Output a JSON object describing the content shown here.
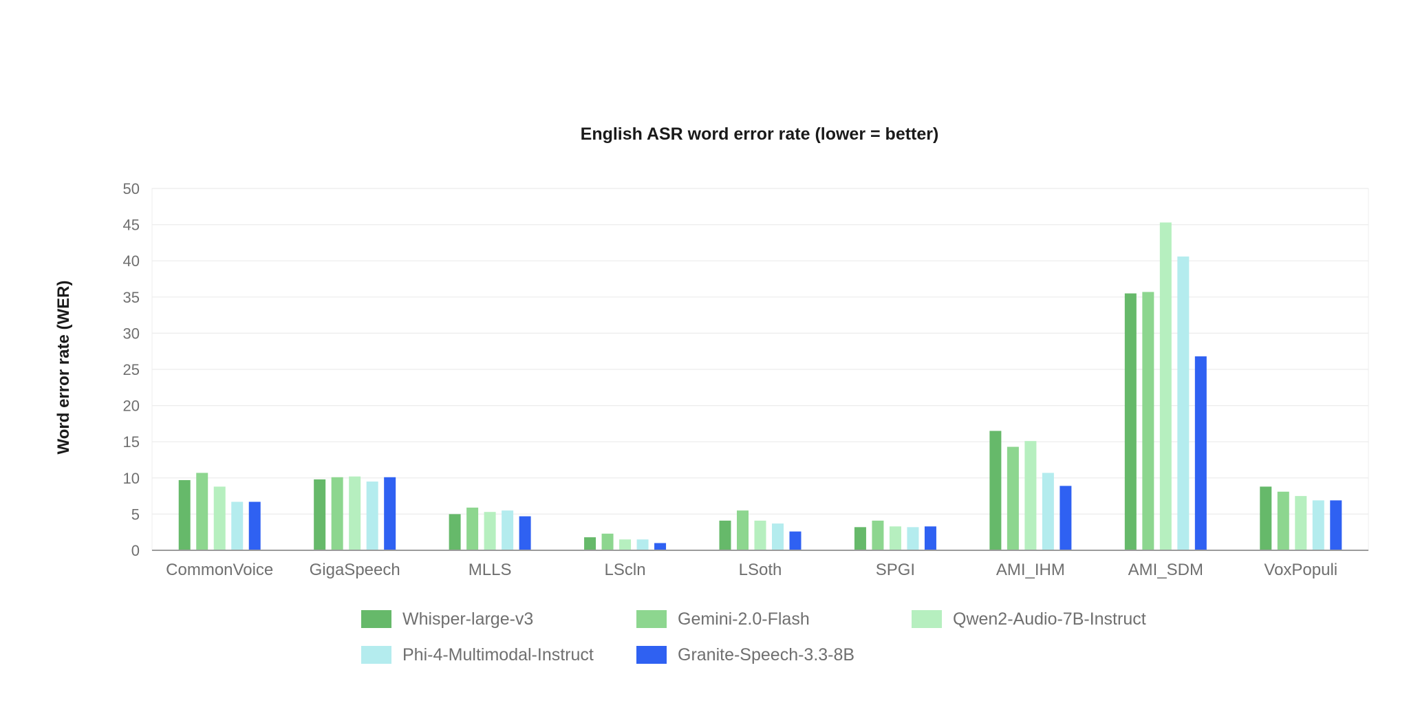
{
  "chart_data": {
    "type": "bar",
    "title": "English ASR word error rate (lower = better)",
    "xlabel": "",
    "ylabel": "Word error rate (WER)",
    "ylim": [
      0,
      50
    ],
    "yticks": [
      0,
      5,
      10,
      15,
      20,
      25,
      30,
      35,
      40,
      45,
      50
    ],
    "grid": true,
    "legend_position": "bottom",
    "categories": [
      "CommonVoice",
      "GigaSpeech",
      "MLLS",
      "LScln",
      "LSoth",
      "SPGI",
      "AMI_IHM",
      "AMI_SDM",
      "VoxPopuli"
    ],
    "series": [
      {
        "name": "Whisper-large-v3",
        "color": "#66b96a",
        "values": [
          9.7,
          9.8,
          5.0,
          1.8,
          4.1,
          3.2,
          16.5,
          35.5,
          8.8
        ]
      },
      {
        "name": "Gemini-2.0-Flash",
        "color": "#8dd68f",
        "values": [
          10.7,
          10.1,
          5.9,
          2.3,
          5.5,
          4.1,
          14.3,
          35.7,
          8.1
        ]
      },
      {
        "name": "Qwen2-Audio-7B-Instruct",
        "color": "#b6efbf",
        "values": [
          8.8,
          10.2,
          5.3,
          1.5,
          4.1,
          3.3,
          15.1,
          45.3,
          7.5
        ]
      },
      {
        "name": "Phi-4-Multimodal-Instruct",
        "color": "#b4ecee",
        "values": [
          6.7,
          9.5,
          5.5,
          1.5,
          3.7,
          3.2,
          10.7,
          40.6,
          6.9
        ]
      },
      {
        "name": "Granite-Speech-3.3-8B",
        "color": "#2f61f2",
        "values": [
          6.7,
          10.1,
          4.7,
          1.0,
          2.6,
          3.3,
          8.9,
          26.8,
          6.9
        ]
      }
    ]
  }
}
